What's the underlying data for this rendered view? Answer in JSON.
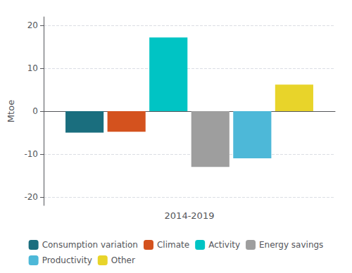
{
  "chart_data": {
    "type": "bar",
    "categories": [
      "2014-2019"
    ],
    "series": [
      {
        "name": "Consumption variation",
        "color": "#1a6e7e",
        "values": [
          -5.0
        ]
      },
      {
        "name": "Climate",
        "color": "#d4521e",
        "values": [
          -4.8
        ]
      },
      {
        "name": "Activity",
        "color": "#00c4c4",
        "values": [
          17.2
        ]
      },
      {
        "name": "Energy savings",
        "color": "#9e9e9e",
        "values": [
          -13.0
        ]
      },
      {
        "name": "Productivity",
        "color": "#4db8d8",
        "values": [
          -11.0
        ]
      },
      {
        "name": "Other",
        "color": "#e8d42a",
        "values": [
          6.2
        ]
      }
    ],
    "ylabel": "Mtoe",
    "ylim": [
      -22,
      22
    ],
    "yticks": [
      -20,
      -10,
      0,
      10,
      20
    ],
    "grid": true,
    "legend": "bottom"
  }
}
